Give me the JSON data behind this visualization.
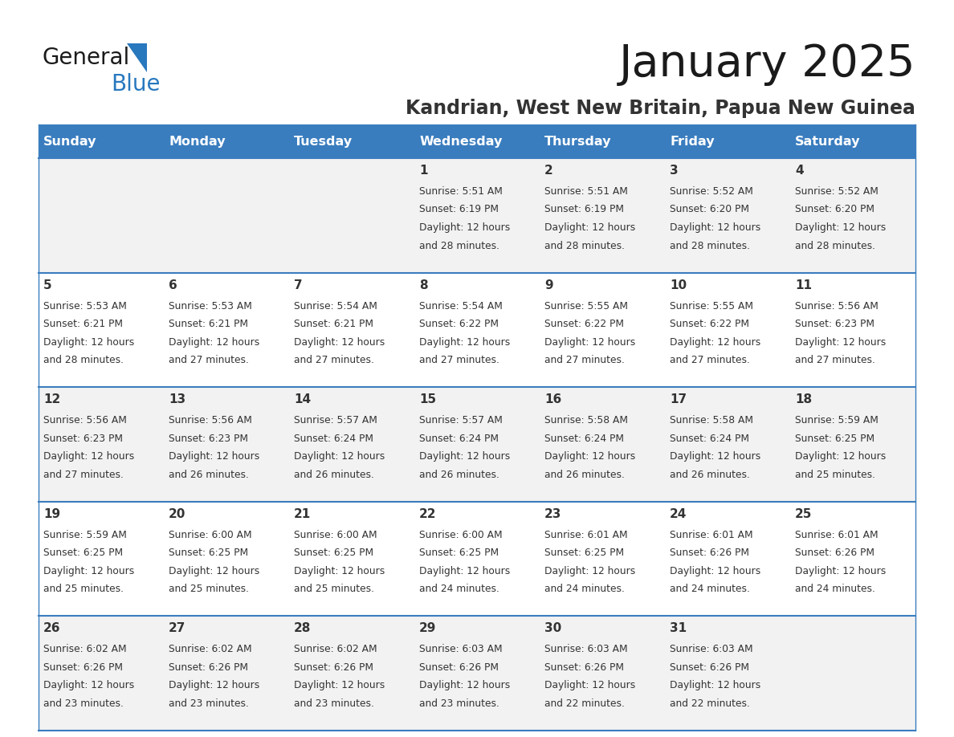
{
  "title": "January 2025",
  "subtitle": "Kandrian, West New Britain, Papua New Guinea",
  "days_of_week": [
    "Sunday",
    "Monday",
    "Tuesday",
    "Wednesday",
    "Thursday",
    "Friday",
    "Saturday"
  ],
  "header_bg": "#3a7dbf",
  "header_text_color": "#ffffff",
  "cell_bg_gray": "#f2f2f2",
  "cell_bg_white": "#ffffff",
  "border_color": "#3a7dbf",
  "text_color": "#333333",
  "title_color": "#1a1a1a",
  "subtitle_color": "#333333",
  "logo_general_color": "#1a1a1a",
  "logo_blue_color": "#2878be",
  "figsize": [
    11.88,
    9.18
  ],
  "dpi": 100,
  "weeks": [
    [
      {
        "day": null,
        "sunrise": null,
        "sunset": null,
        "daylight": null
      },
      {
        "day": null,
        "sunrise": null,
        "sunset": null,
        "daylight": null
      },
      {
        "day": null,
        "sunrise": null,
        "sunset": null,
        "daylight": null
      },
      {
        "day": 1,
        "sunrise": "5:51 AM",
        "sunset": "6:19 PM",
        "daylight": "12 hours and 28 minutes."
      },
      {
        "day": 2,
        "sunrise": "5:51 AM",
        "sunset": "6:19 PM",
        "daylight": "12 hours and 28 minutes."
      },
      {
        "day": 3,
        "sunrise": "5:52 AM",
        "sunset": "6:20 PM",
        "daylight": "12 hours and 28 minutes."
      },
      {
        "day": 4,
        "sunrise": "5:52 AM",
        "sunset": "6:20 PM",
        "daylight": "12 hours and 28 minutes."
      }
    ],
    [
      {
        "day": 5,
        "sunrise": "5:53 AM",
        "sunset": "6:21 PM",
        "daylight": "12 hours and 28 minutes."
      },
      {
        "day": 6,
        "sunrise": "5:53 AM",
        "sunset": "6:21 PM",
        "daylight": "12 hours and 27 minutes."
      },
      {
        "day": 7,
        "sunrise": "5:54 AM",
        "sunset": "6:21 PM",
        "daylight": "12 hours and 27 minutes."
      },
      {
        "day": 8,
        "sunrise": "5:54 AM",
        "sunset": "6:22 PM",
        "daylight": "12 hours and 27 minutes."
      },
      {
        "day": 9,
        "sunrise": "5:55 AM",
        "sunset": "6:22 PM",
        "daylight": "12 hours and 27 minutes."
      },
      {
        "day": 10,
        "sunrise": "5:55 AM",
        "sunset": "6:22 PM",
        "daylight": "12 hours and 27 minutes."
      },
      {
        "day": 11,
        "sunrise": "5:56 AM",
        "sunset": "6:23 PM",
        "daylight": "12 hours and 27 minutes."
      }
    ],
    [
      {
        "day": 12,
        "sunrise": "5:56 AM",
        "sunset": "6:23 PM",
        "daylight": "12 hours and 27 minutes."
      },
      {
        "day": 13,
        "sunrise": "5:56 AM",
        "sunset": "6:23 PM",
        "daylight": "12 hours and 26 minutes."
      },
      {
        "day": 14,
        "sunrise": "5:57 AM",
        "sunset": "6:24 PM",
        "daylight": "12 hours and 26 minutes."
      },
      {
        "day": 15,
        "sunrise": "5:57 AM",
        "sunset": "6:24 PM",
        "daylight": "12 hours and 26 minutes."
      },
      {
        "day": 16,
        "sunrise": "5:58 AM",
        "sunset": "6:24 PM",
        "daylight": "12 hours and 26 minutes."
      },
      {
        "day": 17,
        "sunrise": "5:58 AM",
        "sunset": "6:24 PM",
        "daylight": "12 hours and 26 minutes."
      },
      {
        "day": 18,
        "sunrise": "5:59 AM",
        "sunset": "6:25 PM",
        "daylight": "12 hours and 25 minutes."
      }
    ],
    [
      {
        "day": 19,
        "sunrise": "5:59 AM",
        "sunset": "6:25 PM",
        "daylight": "12 hours and 25 minutes."
      },
      {
        "day": 20,
        "sunrise": "6:00 AM",
        "sunset": "6:25 PM",
        "daylight": "12 hours and 25 minutes."
      },
      {
        "day": 21,
        "sunrise": "6:00 AM",
        "sunset": "6:25 PM",
        "daylight": "12 hours and 25 minutes."
      },
      {
        "day": 22,
        "sunrise": "6:00 AM",
        "sunset": "6:25 PM",
        "daylight": "12 hours and 24 minutes."
      },
      {
        "day": 23,
        "sunrise": "6:01 AM",
        "sunset": "6:25 PM",
        "daylight": "12 hours and 24 minutes."
      },
      {
        "day": 24,
        "sunrise": "6:01 AM",
        "sunset": "6:26 PM",
        "daylight": "12 hours and 24 minutes."
      },
      {
        "day": 25,
        "sunrise": "6:01 AM",
        "sunset": "6:26 PM",
        "daylight": "12 hours and 24 minutes."
      }
    ],
    [
      {
        "day": 26,
        "sunrise": "6:02 AM",
        "sunset": "6:26 PM",
        "daylight": "12 hours and 23 minutes."
      },
      {
        "day": 27,
        "sunrise": "6:02 AM",
        "sunset": "6:26 PM",
        "daylight": "12 hours and 23 minutes."
      },
      {
        "day": 28,
        "sunrise": "6:02 AM",
        "sunset": "6:26 PM",
        "daylight": "12 hours and 23 minutes."
      },
      {
        "day": 29,
        "sunrise": "6:03 AM",
        "sunset": "6:26 PM",
        "daylight": "12 hours and 23 minutes."
      },
      {
        "day": 30,
        "sunrise": "6:03 AM",
        "sunset": "6:26 PM",
        "daylight": "12 hours and 22 minutes."
      },
      {
        "day": 31,
        "sunrise": "6:03 AM",
        "sunset": "6:26 PM",
        "daylight": "12 hours and 22 minutes."
      },
      {
        "day": null,
        "sunrise": null,
        "sunset": null,
        "daylight": null
      }
    ]
  ],
  "week_bg_colors": [
    "#f2f2f2",
    "#ffffff",
    "#f2f2f2",
    "#ffffff",
    "#f2f2f2"
  ]
}
